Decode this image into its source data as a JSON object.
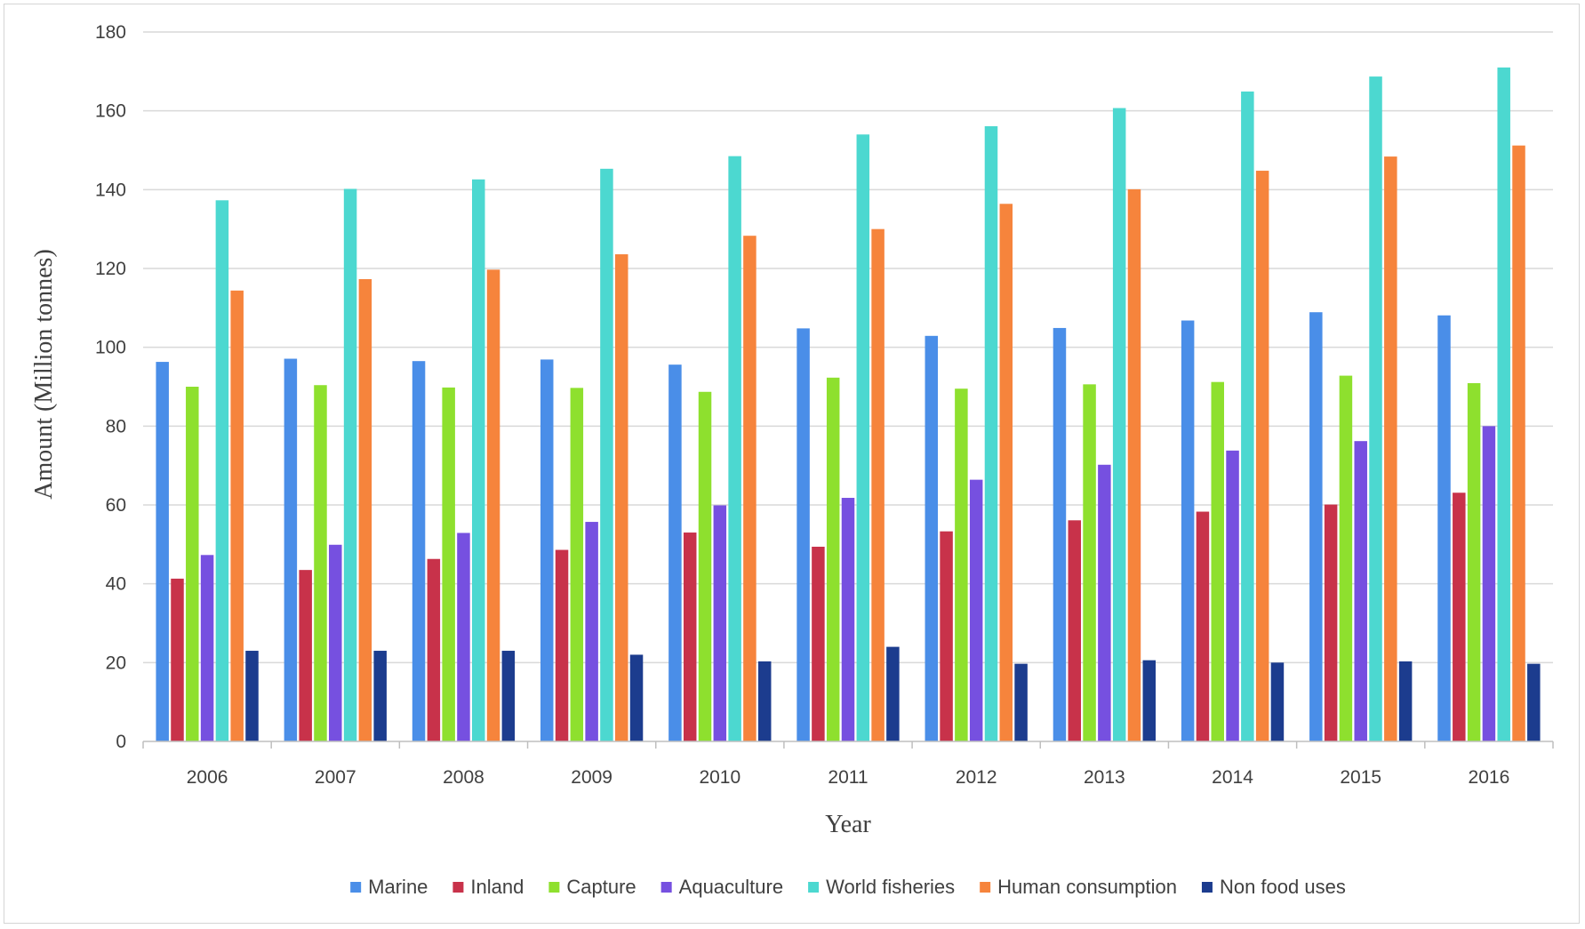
{
  "chart_data": {
    "type": "bar",
    "title": "",
    "xlabel": "Year",
    "ylabel": "Amount (Million tonnes)",
    "ylim": [
      0,
      180
    ],
    "yticks": [
      0,
      20,
      40,
      60,
      80,
      100,
      120,
      140,
      160,
      180
    ],
    "grid": true,
    "legend_position": "bottom",
    "categories": [
      "2006",
      "2007",
      "2008",
      "2009",
      "2010",
      "2011",
      "2012",
      "2013",
      "2014",
      "2015",
      "2016"
    ],
    "series": [
      {
        "name": "Marine",
        "color": "#4a8ee8",
        "values": [
          96.3,
          97.1,
          96.5,
          96.9,
          95.6,
          104.8,
          102.9,
          104.9,
          106.8,
          108.9,
          108.1
        ]
      },
      {
        "name": "Inland",
        "color": "#c8324a",
        "values": [
          41.3,
          43.5,
          46.3,
          48.6,
          53.0,
          49.4,
          53.3,
          56.1,
          58.3,
          60.1,
          63.1
        ]
      },
      {
        "name": "Capture",
        "color": "#8ee02e",
        "values": [
          90.0,
          90.4,
          89.8,
          89.7,
          88.7,
          92.3,
          89.5,
          90.6,
          91.2,
          92.8,
          90.9
        ]
      },
      {
        "name": "Aquaculture",
        "color": "#7650e0",
        "values": [
          47.3,
          49.9,
          52.9,
          55.7,
          59.9,
          61.8,
          66.4,
          70.2,
          73.8,
          76.2,
          80.0
        ]
      },
      {
        "name": "World fisheries",
        "color": "#4cd8d0",
        "values": [
          137.3,
          140.2,
          142.6,
          145.3,
          148.5,
          154.0,
          156.1,
          160.7,
          164.9,
          168.7,
          171.0
        ]
      },
      {
        "name": "Human consumption",
        "color": "#f6843c",
        "values": [
          114.4,
          117.3,
          119.7,
          123.6,
          128.3,
          130.0,
          136.4,
          140.1,
          144.8,
          148.4,
          151.2
        ]
      },
      {
        "name": "Non food uses",
        "color": "#1c3c8e",
        "values": [
          23.0,
          23.0,
          23.0,
          22.0,
          20.3,
          24.0,
          19.7,
          20.6,
          20.0,
          20.3,
          19.7
        ]
      }
    ]
  }
}
